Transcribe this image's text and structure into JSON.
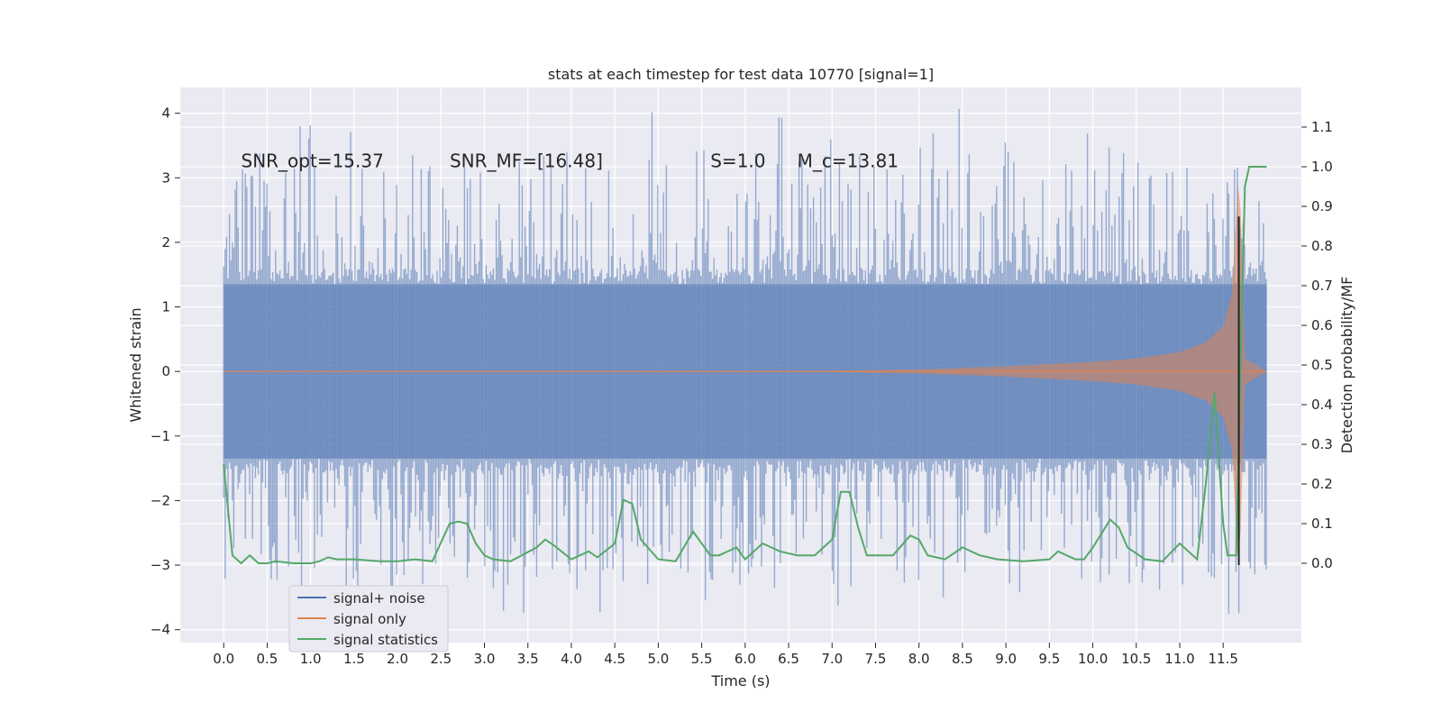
{
  "chart_data": {
    "type": "line",
    "title": "stats at each timestep for test data 10770 [signal=1]",
    "xlabel": "Time (s)",
    "ylabel": "Whitened strain",
    "y2label": "Detection probability/MF",
    "xlim": [
      -0.5,
      12.4
    ],
    "ylim": [
      -4.2,
      4.4
    ],
    "y2lim": [
      -0.2,
      1.2
    ],
    "x_ticks": [
      0.0,
      0.5,
      1.0,
      1.5,
      2.0,
      2.5,
      3.0,
      3.5,
      4.0,
      4.5,
      5.0,
      5.5,
      6.0,
      6.5,
      7.0,
      7.5,
      8.0,
      8.5,
      9.0,
      9.5,
      10.0,
      10.5,
      11.0,
      11.5
    ],
    "x_tick_labels": [
      "0.0",
      "0.5",
      "1.0",
      "1.5",
      "2.0",
      "2.5",
      "3.0",
      "3.5",
      "4.0",
      "4.5",
      "5.0",
      "5.5",
      "6.0",
      "6.5",
      "7.0",
      "7.5",
      "8.0",
      "8.5",
      "9.0",
      "9.5",
      "10.0",
      "10.5",
      "11.0",
      "11.5"
    ],
    "y_ticks": [
      -4,
      -3,
      -2,
      -1,
      0,
      1,
      2,
      3,
      4
    ],
    "y_tick_labels": [
      "−4",
      "−3",
      "−2",
      "−1",
      "0",
      "1",
      "2",
      "3",
      "4"
    ],
    "y2_ticks": [
      0.0,
      0.1,
      0.2,
      0.3,
      0.4,
      0.5,
      0.6,
      0.7,
      0.8,
      0.9,
      1.0,
      1.1
    ],
    "y2_tick_labels": [
      "0.0",
      "0.1",
      "0.2",
      "0.3",
      "0.4",
      "0.5",
      "0.6",
      "0.7",
      "0.8",
      "0.9",
      "1.0",
      "1.1"
    ],
    "legend_position": "lower-left",
    "annotations": [
      {
        "label": "SNR_opt=15.37",
        "x": 0.2,
        "y": 3.25
      },
      {
        "label": "SNR_MF=[16.48]",
        "x": 2.6,
        "y": 3.25
      },
      {
        "label": "S=1.0",
        "x": 5.6,
        "y": 3.25
      },
      {
        "label": "M_c=13.81",
        "x": 6.6,
        "y": 3.25
      }
    ],
    "marker_line": {
      "x": 11.68,
      "ymin": -3.0,
      "ymax": 2.4
    },
    "series": [
      {
        "name": "signal+ noise",
        "color": "#4c72b0",
        "kind": "noisy_strain",
        "x_range": [
          0.0,
          12.0
        ],
        "body_amplitude": 1.35,
        "peak_range": [
          -3.8,
          4.1
        ]
      },
      {
        "name": "signal only",
        "color": "#dd8452",
        "kind": "chirp",
        "x_range": [
          0.0,
          12.0
        ],
        "merger_time": 11.7,
        "envelope_points": [
          [
            0.0,
            0.0
          ],
          [
            7.0,
            0.01
          ],
          [
            8.0,
            0.03
          ],
          [
            9.0,
            0.08
          ],
          [
            10.0,
            0.15
          ],
          [
            10.5,
            0.2
          ],
          [
            11.0,
            0.3
          ],
          [
            11.3,
            0.45
          ],
          [
            11.5,
            0.7
          ],
          [
            11.6,
            1.2
          ],
          [
            11.67,
            2.9
          ],
          [
            11.7,
            2.5
          ],
          [
            11.75,
            0.2
          ],
          [
            12.0,
            0.0
          ]
        ]
      },
      {
        "name": "signal statistics",
        "color": "#55a868",
        "axis": "right",
        "x": [
          0.0,
          0.1,
          0.15,
          0.2,
          0.3,
          0.4,
          0.5,
          0.6,
          0.8,
          1.0,
          1.1,
          1.2,
          1.3,
          1.5,
          1.8,
          2.0,
          2.2,
          2.4,
          2.6,
          2.7,
          2.8,
          2.9,
          3.0,
          3.1,
          3.3,
          3.6,
          3.7,
          3.8,
          4.0,
          4.2,
          4.3,
          4.5,
          4.6,
          4.7,
          4.8,
          5.0,
          5.2,
          5.4,
          5.5,
          5.6,
          5.7,
          5.9,
          6.0,
          6.2,
          6.3,
          6.4,
          6.6,
          6.8,
          7.0,
          7.1,
          7.2,
          7.3,
          7.4,
          7.5,
          7.7,
          7.9,
          8.0,
          8.1,
          8.3,
          8.5,
          8.7,
          8.9,
          9.2,
          9.5,
          9.6,
          9.8,
          9.9,
          10.0,
          10.2,
          10.3,
          10.4,
          10.6,
          10.8,
          11.0,
          11.1,
          11.2,
          11.3,
          11.4,
          11.5,
          11.55,
          11.65,
          11.7,
          11.75,
          11.8,
          11.85,
          11.9,
          12.0
        ],
        "values": [
          0.25,
          0.02,
          0.01,
          0.0,
          0.02,
          0.0,
          0.0,
          0.005,
          0.0,
          0.0,
          0.005,
          0.015,
          0.01,
          0.01,
          0.005,
          0.005,
          0.01,
          0.005,
          0.1,
          0.105,
          0.1,
          0.05,
          0.02,
          0.01,
          0.005,
          0.04,
          0.06,
          0.045,
          0.01,
          0.03,
          0.015,
          0.05,
          0.16,
          0.15,
          0.06,
          0.01,
          0.005,
          0.08,
          0.05,
          0.02,
          0.02,
          0.04,
          0.01,
          0.05,
          0.04,
          0.03,
          0.02,
          0.02,
          0.06,
          0.18,
          0.18,
          0.09,
          0.02,
          0.02,
          0.02,
          0.07,
          0.06,
          0.02,
          0.01,
          0.04,
          0.02,
          0.01,
          0.005,
          0.01,
          0.03,
          0.01,
          0.01,
          0.04,
          0.11,
          0.09,
          0.04,
          0.01,
          0.005,
          0.05,
          0.03,
          0.01,
          0.2,
          0.43,
          0.1,
          0.02,
          0.02,
          0.5,
          0.95,
          1.0,
          1.0,
          1.0,
          1.0
        ]
      }
    ]
  }
}
